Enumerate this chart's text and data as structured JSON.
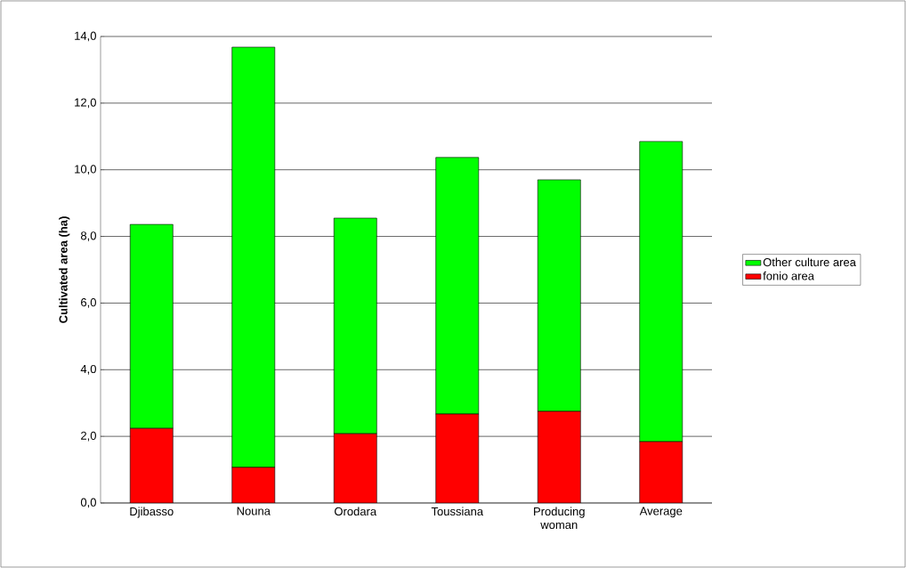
{
  "chart_data": {
    "type": "bar",
    "stacked": true,
    "ylabel": "Cultivated area (ha)",
    "categories": [
      "Djibasso",
      "Nouna",
      "Orodara",
      "Toussiana",
      "Producing woman",
      "Average"
    ],
    "series": [
      {
        "name": "fonio area",
        "color": "#ff0000",
        "values": [
          2.24,
          1.07,
          2.08,
          2.67,
          2.75,
          1.84
        ]
      },
      {
        "name": "Other culture area",
        "color": "#00ff00",
        "values": [
          6.12,
          12.61,
          6.47,
          7.7,
          6.95,
          9.01
        ]
      }
    ],
    "ylim": [
      0,
      14
    ],
    "yticks": [
      {
        "value": 0,
        "label": "0,0"
      },
      {
        "value": 2,
        "label": "2,0"
      },
      {
        "value": 4,
        "label": "4,0"
      },
      {
        "value": 6,
        "label": "6,0"
      },
      {
        "value": 8,
        "label": "8,0"
      },
      {
        "value": 10,
        "label": "10,0"
      },
      {
        "value": 12,
        "label": "12,0"
      },
      {
        "value": 14,
        "label": "14,0"
      }
    ],
    "grid": "y",
    "legend": "right"
  }
}
